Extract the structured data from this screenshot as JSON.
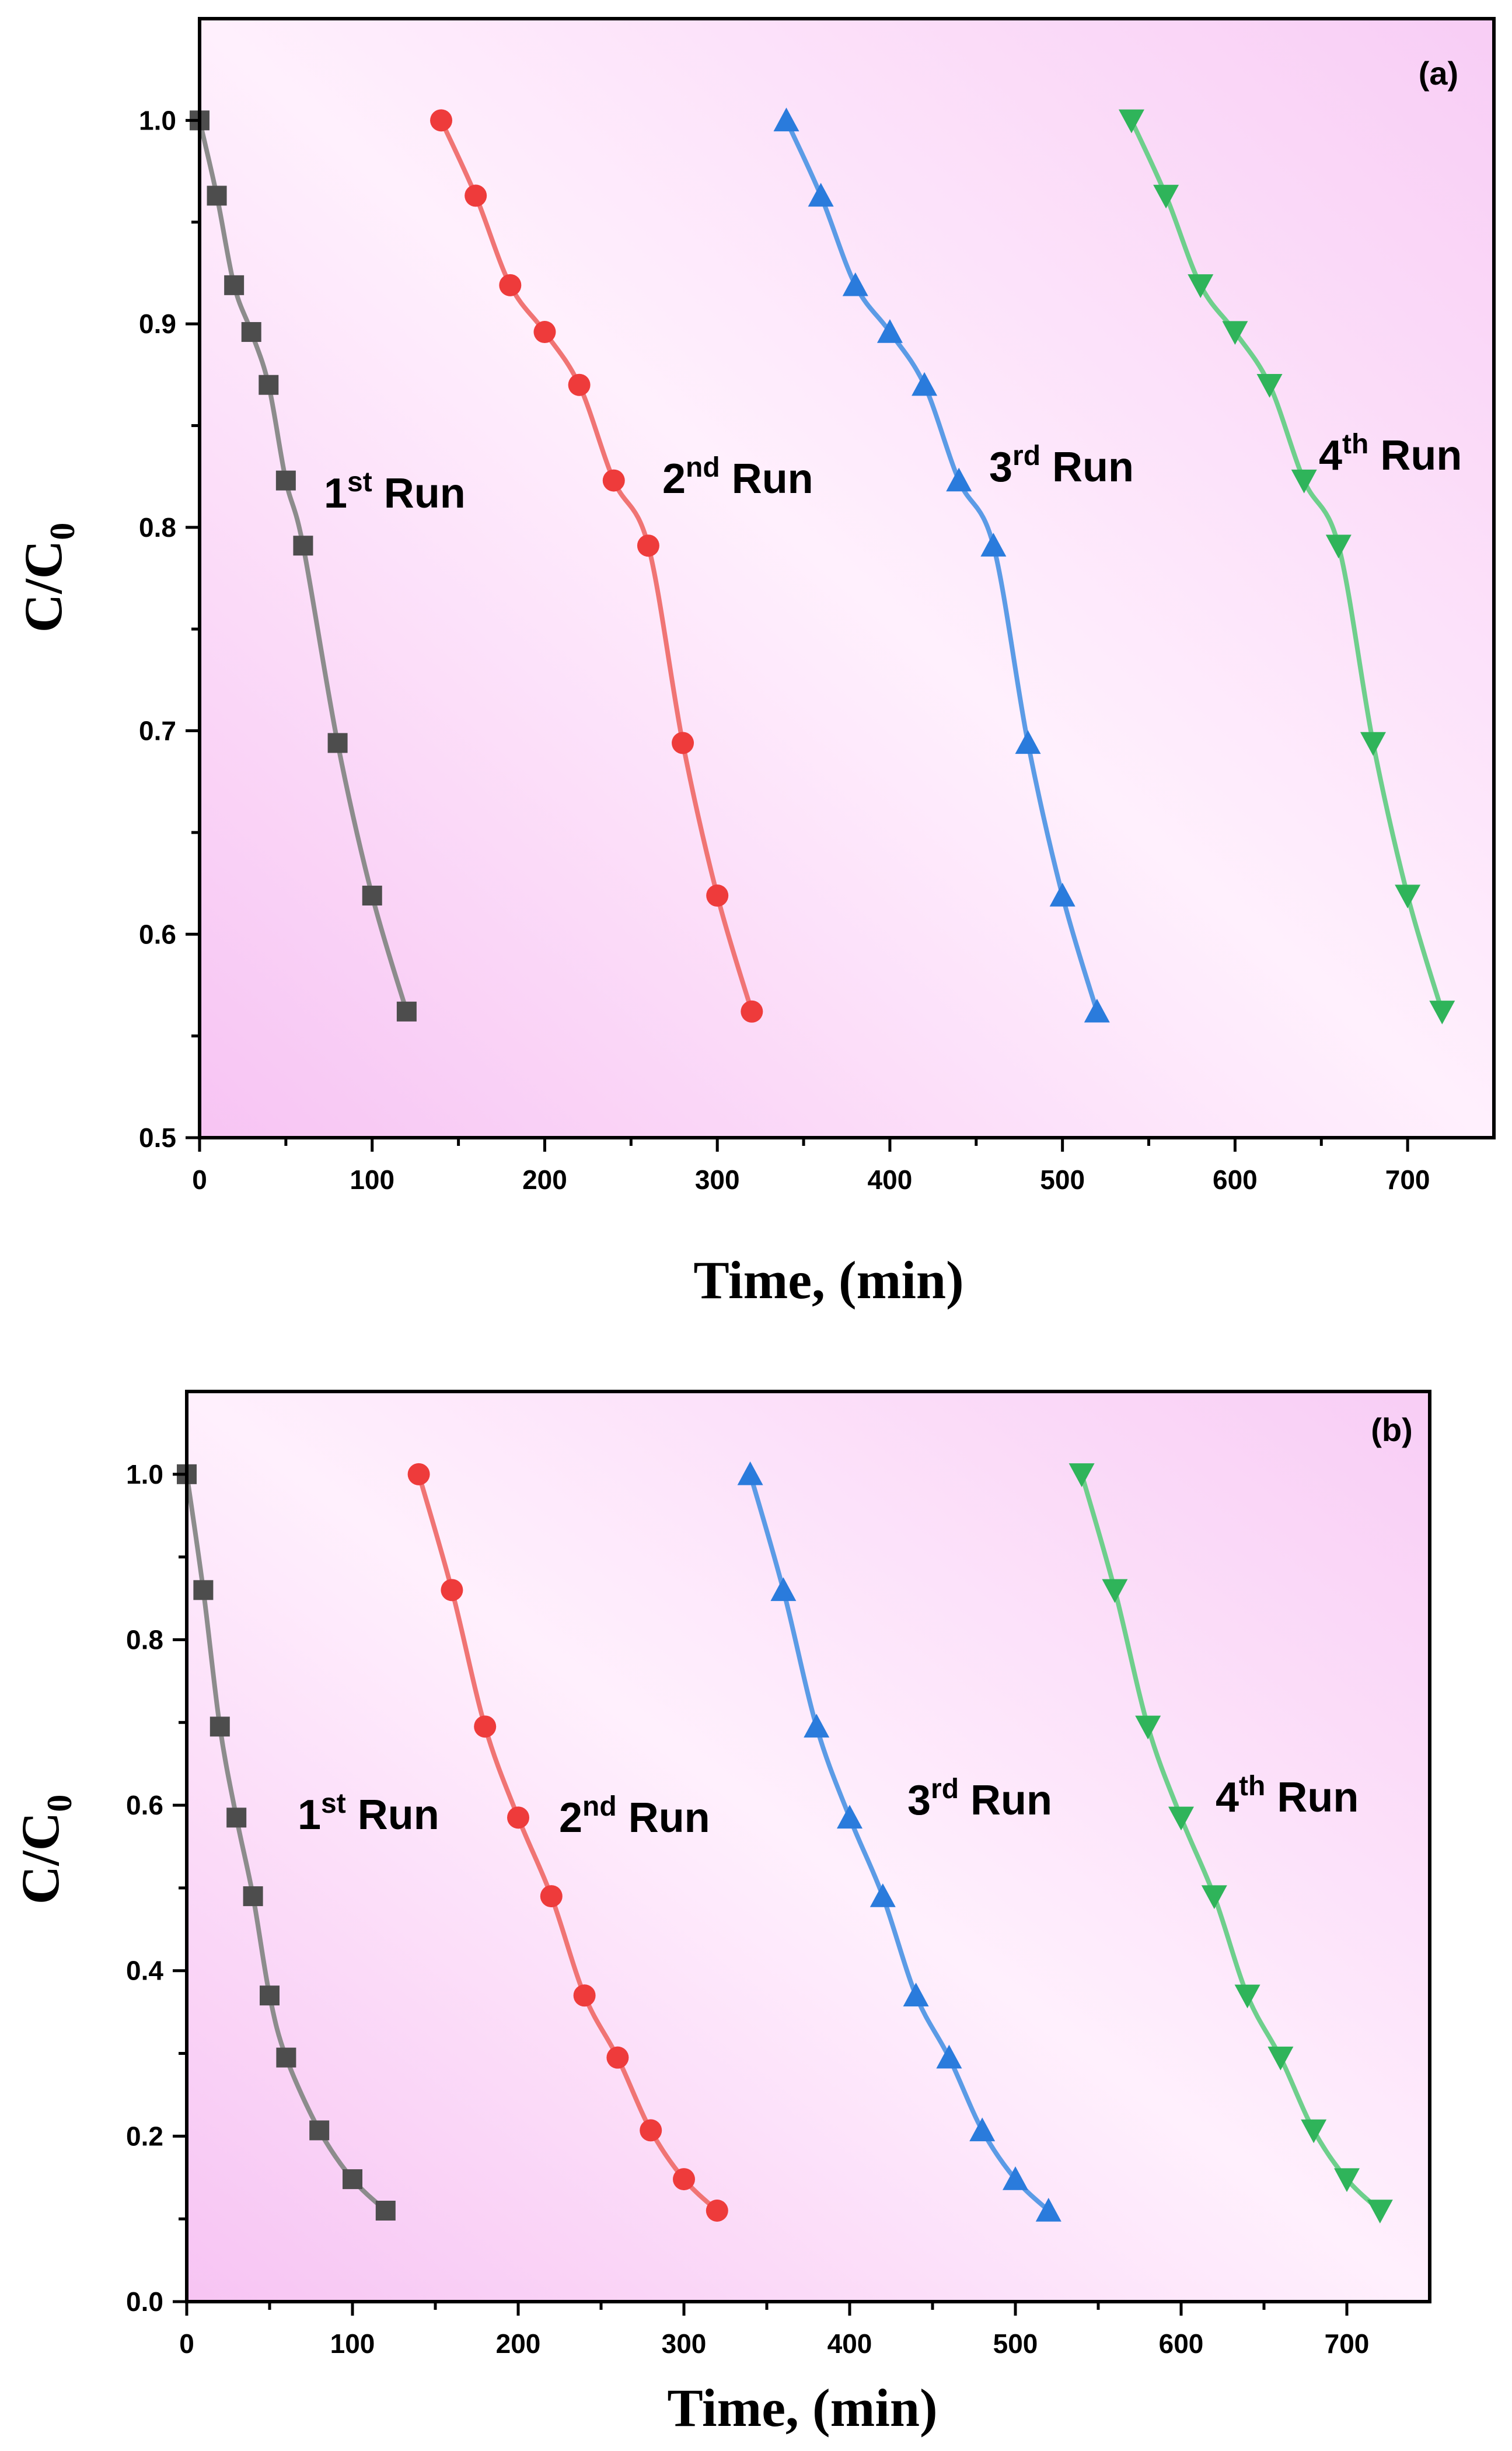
{
  "chart_data": [
    {
      "type": "line",
      "panel_label": "(a)",
      "xlabel": "Time, (min)",
      "ylabel": "C/C",
      "ylabel_sub": "0",
      "xlim": [
        0,
        750
      ],
      "ylim": [
        0.5,
        1.05
      ],
      "xticks": [
        0,
        100,
        200,
        300,
        400,
        500,
        600,
        700
      ],
      "yticks": [
        0.5,
        0.6,
        0.7,
        0.8,
        0.9,
        1.0
      ],
      "ytick_labels": [
        "0.5",
        "0.6",
        "0.7",
        "0.8",
        "0.9",
        "1.0"
      ],
      "grid": false,
      "series": [
        {
          "marker": "square",
          "color": "#4d4d4d",
          "line_color": "#8c8c8c",
          "label": "1",
          "label_sup": "st",
          "label_rest": " Run",
          "x": [
            0,
            10,
            20,
            30,
            40,
            50,
            60,
            80,
            100,
            120
          ],
          "y": [
            1.0,
            0.963,
            0.919,
            0.896,
            0.87,
            0.823,
            0.791,
            0.694,
            0.619,
            0.562
          ]
        },
        {
          "marker": "circle",
          "color": "#ee3b3b",
          "line_color": "#f07474",
          "label": "2",
          "label_sup": "nd",
          "label_rest": " Run",
          "x": [
            140,
            160,
            180,
            200,
            220,
            240,
            260,
            280,
            300,
            320
          ],
          "y": [
            1.0,
            0.963,
            0.919,
            0.896,
            0.87,
            0.823,
            0.791,
            0.694,
            0.619,
            0.562
          ]
        },
        {
          "marker": "triangle-up",
          "color": "#2a7bdc",
          "line_color": "#5b9be6",
          "label": "3",
          "label_sup": "rd",
          "label_rest": " Run",
          "x": [
            340,
            360,
            380,
            400,
            420,
            440,
            460,
            480,
            500,
            520
          ],
          "y": [
            1.0,
            0.963,
            0.919,
            0.896,
            0.87,
            0.823,
            0.791,
            0.694,
            0.619,
            0.562
          ]
        },
        {
          "marker": "triangle-down",
          "color": "#2fb45a",
          "line_color": "#6ecf8c",
          "label": "4",
          "label_sup": "th",
          "label_rest": " Run",
          "x": [
            540,
            560,
            580,
            600,
            620,
            640,
            660,
            680,
            700,
            720
          ],
          "y": [
            1.0,
            0.963,
            0.919,
            0.896,
            0.87,
            0.823,
            0.791,
            0.694,
            0.619,
            0.562
          ]
        }
      ]
    },
    {
      "type": "line",
      "panel_label": "(b)",
      "xlabel": "Time, (min)",
      "ylabel": "C/C",
      "ylabel_sub": "0",
      "xlim": [
        0,
        750
      ],
      "ylim": [
        0.0,
        1.1
      ],
      "xticks": [
        0,
        100,
        200,
        300,
        400,
        500,
        600,
        700
      ],
      "yticks": [
        0.0,
        0.2,
        0.4,
        0.6,
        0.8,
        1.0
      ],
      "ytick_labels": [
        "0.0",
        "0.2",
        "0.4",
        "0.6",
        "0.8",
        "1.0"
      ],
      "grid": false,
      "series": [
        {
          "marker": "square",
          "color": "#4d4d4d",
          "line_color": "#8c8c8c",
          "label": "1",
          "label_sup": "st",
          "label_rest": " Run",
          "x": [
            0,
            10,
            20,
            30,
            40,
            50,
            60,
            80,
            100,
            120
          ],
          "y": [
            1.0,
            0.86,
            0.695,
            0.585,
            0.49,
            0.37,
            0.295,
            0.207,
            0.148,
            0.11
          ]
        },
        {
          "marker": "circle",
          "color": "#ee3b3b",
          "line_color": "#f07474",
          "label": "2",
          "label_sup": "nd",
          "label_rest": " Run",
          "x": [
            140,
            160,
            180,
            200,
            220,
            240,
            260,
            280,
            300,
            320
          ],
          "y": [
            1.0,
            0.86,
            0.695,
            0.585,
            0.49,
            0.37,
            0.295,
            0.207,
            0.148,
            0.11
          ]
        },
        {
          "marker": "triangle-up",
          "color": "#2a7bdc",
          "line_color": "#5b9be6",
          "label": "3",
          "label_sup": "rd",
          "label_rest": " Run",
          "x": [
            340,
            360,
            380,
            400,
            420,
            440,
            460,
            480,
            500,
            520
          ],
          "y": [
            1.0,
            0.86,
            0.695,
            0.585,
            0.49,
            0.37,
            0.295,
            0.207,
            0.148,
            0.11
          ]
        },
        {
          "marker": "triangle-down",
          "color": "#2fb45a",
          "line_color": "#6ecf8c",
          "label": "4",
          "label_sup": "th",
          "label_rest": " Run",
          "x": [
            540,
            560,
            580,
            600,
            620,
            640,
            660,
            680,
            700,
            720
          ],
          "y": [
            1.0,
            0.86,
            0.695,
            0.585,
            0.49,
            0.37,
            0.295,
            0.207,
            0.148,
            0.11
          ]
        }
      ]
    }
  ]
}
